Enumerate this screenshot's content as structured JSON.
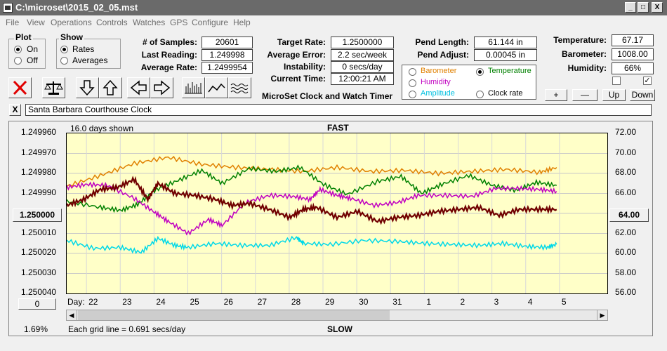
{
  "window": {
    "title": "C:\\microset\\2015_02_05.mst",
    "minimize": "_",
    "maximize": "□",
    "close": "X"
  },
  "menu": [
    "File",
    "View",
    "Operations",
    "Controls",
    "Watches",
    "GPS",
    "Configure",
    "Help"
  ],
  "plot_group": {
    "title": "Plot",
    "options": [
      "On",
      "Off"
    ],
    "selected": "On"
  },
  "show_group": {
    "title": "Show",
    "options": [
      "Rates",
      "Averages"
    ],
    "selected": "Rates"
  },
  "stats": {
    "samples_label": "# of Samples:",
    "samples": "20601",
    "last_label": "Last Reading:",
    "last": "1.249998",
    "avg_label": "Average Rate:",
    "avg": "1.2499954",
    "target_label": "Target Rate:",
    "target": "1.2500000",
    "error_label": "Average Error:",
    "error": "2.2 sec/week",
    "instab_label": "Instability:",
    "instab": "0 secs/day",
    "time_label": "Current Time:",
    "time": "12:00:21 AM",
    "pend_len_label": "Pend Length:",
    "pend_len": "61.144 in",
    "pend_adj_label": "Pend Adjust:",
    "pend_adj": "0.00045 in",
    "temp_label": "Temperature:",
    "temp": "67.17",
    "baro_label": "Barometer:",
    "baro": "1008.00",
    "hum_label": "Humidity:",
    "hum": "66%"
  },
  "app_caption": "MicroSet Clock and Watch Timer",
  "sensor_options": [
    {
      "label": "Barometer",
      "color": "#e08000",
      "selected": false
    },
    {
      "label": "Temperature",
      "color": "#008000",
      "selected": true
    },
    {
      "label": "Humidity",
      "color": "#c000c0",
      "selected": false
    },
    {
      "label": "Amplitude",
      "color": "#00c0e0",
      "selected": false
    },
    {
      "label": "Clock rate",
      "color": "#000000",
      "selected": false
    }
  ],
  "scale_buttons": [
    "+",
    "—",
    "Up",
    "Down"
  ],
  "checkbox_right": "✓",
  "clock_name": "Santa Barbara Courthouse Clock",
  "clear_button": "X",
  "graph": {
    "days_shown": "16.0 days shown",
    "top_label": "FAST",
    "bottom_label": "SLOW",
    "grid_note": "Each grid line = 0.691 secs/day",
    "percent": "1.69%",
    "left_value_button": "1.250000",
    "right_value_button": "64.00",
    "zero_button": "0",
    "day_label": "Day:"
  },
  "chart_data": {
    "type": "line",
    "left_axis_ticks": [
      "1.249960",
      "1.249970",
      "1.249980",
      "1.249990",
      "1.250000",
      "1.250010",
      "1.250020",
      "1.250030",
      "1.250040"
    ],
    "right_axis_ticks": [
      "72.00",
      "70.00",
      "68.00",
      "66.00",
      "64.00",
      "62.00",
      "60.00",
      "58.00",
      "56.00"
    ],
    "x_ticks": [
      "22",
      "23",
      "24",
      "25",
      "26",
      "27",
      "28",
      "29",
      "30",
      "31",
      "1",
      "2",
      "3",
      "4",
      "5"
    ],
    "y_left_range": [
      1.24996,
      1.25004
    ],
    "y_right_range": [
      56,
      72
    ],
    "x_range": [
      0,
      16
    ],
    "grid": true,
    "series": [
      {
        "color": "#e08000",
        "axis": "right",
        "x": [
          0,
          1,
          2,
          3,
          4,
          5,
          6,
          7,
          8,
          9,
          10,
          11,
          12,
          13,
          14,
          14.5
        ],
        "values": [
          66.7,
          67.8,
          69.0,
          69.6,
          68.9,
          68.6,
          68.4,
          68.2,
          68.6,
          68.2,
          68.3,
          68.0,
          68.2,
          68.4,
          68.1,
          68.6
        ]
      },
      {
        "color": "#008000",
        "axis": "right",
        "x": [
          0,
          1,
          1.6,
          2.1,
          2.6,
          3.3,
          4.0,
          4.6,
          5.4,
          6.2,
          6.9,
          7.6,
          8.3,
          9.2,
          9.9,
          10.5,
          11.1,
          11.9,
          12.6,
          13.3,
          13.9,
          14.5
        ],
        "values": [
          65.2,
          64.6,
          64.3,
          64.9,
          66.3,
          67.3,
          68.3,
          67.0,
          68.5,
          68.2,
          68.6,
          66.9,
          65.9,
          67.2,
          67.7,
          66.0,
          66.9,
          67.8,
          66.8,
          66.3,
          67.1,
          66.8
        ]
      },
      {
        "color": "#c000c0",
        "axis": "right",
        "x": [
          0,
          0.6,
          1.2,
          2.0,
          2.6,
          3.0,
          3.6,
          4.2,
          4.6,
          5.3,
          6.0,
          6.7,
          7.2,
          7.5,
          8.0,
          8.4,
          9.1,
          9.8,
          10.4,
          11.2,
          12.0,
          12.7,
          13.4,
          14.0,
          14.5
        ],
        "values": [
          66.6,
          66.9,
          66.8,
          65.5,
          64.1,
          63.2,
          62.0,
          63.4,
          62.8,
          65.1,
          65.8,
          65.7,
          65.4,
          66.4,
          65.8,
          65.5,
          64.8,
          65.1,
          65.8,
          65.8,
          65.7,
          66.5,
          66.5,
          66.4,
          66.2
        ]
      },
      {
        "color": "#00d8e8",
        "axis": "right",
        "x": [
          0,
          0.8,
          1.6,
          2.2,
          2.7,
          3.2,
          3.6,
          4.4,
          5.2,
          6.0,
          6.8,
          7.0,
          7.8,
          8.8,
          9.8,
          10.6,
          11.4,
          12.2,
          12.9,
          13.6,
          14.2,
          14.5
        ],
        "values": [
          61.3,
          60.5,
          60.6,
          60.1,
          61.5,
          60.8,
          60.6,
          61.0,
          60.8,
          60.8,
          61.6,
          61.0,
          60.9,
          61.3,
          61.2,
          61.0,
          60.9,
          60.8,
          61.0,
          60.7,
          60.6,
          60.9
        ]
      },
      {
        "color": "#700000",
        "axis": "left",
        "x": [
          0,
          0.5,
          1.0,
          1.5,
          2.0,
          2.4,
          2.7,
          3.2,
          3.8,
          4.4,
          4.9,
          5.4,
          6.0,
          6.6,
          7.0,
          7.4,
          8.0,
          8.6,
          9.2,
          9.8,
          10.4,
          11.0,
          11.6,
          12.2,
          12.8,
          13.4,
          14.0,
          14.5
        ],
        "values": [
          1.249996,
          1.249993,
          1.249988,
          1.249987,
          1.249983,
          1.249993,
          1.249985,
          1.24999,
          1.249991,
          1.249993,
          1.249996,
          1.249995,
          1.249998,
          1.250002,
          1.249998,
          1.249997,
          1.250002,
          1.249999,
          1.250004,
          1.250002,
          1.250001,
          1.249999,
          1.249998,
          1.249997,
          1.250001,
          1.249998,
          1.249998,
          1.249998
        ]
      }
    ]
  }
}
